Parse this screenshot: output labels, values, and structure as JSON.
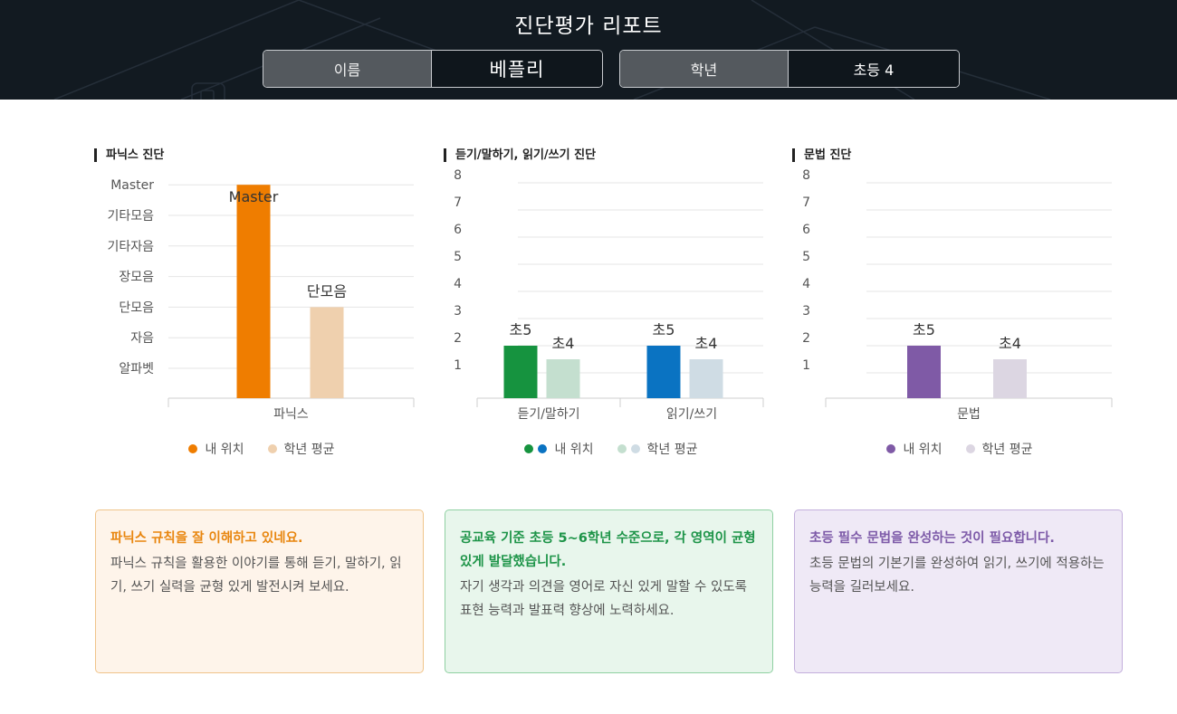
{
  "header": {
    "title": "진단평가 리포트",
    "name_label": "이름",
    "name_value": "베플리",
    "grade_label": "학년",
    "grade_value": "초등 4"
  },
  "panels": [
    {
      "title": "파닉스 진단",
      "legend": [
        "내 위치",
        "학년 평균"
      ]
    },
    {
      "title": "듣기/말하기, 읽기/쓰기 진단",
      "legend": [
        "내 위치",
        "학년 평균"
      ]
    },
    {
      "title": "문법 진단",
      "legend": [
        "내 위치",
        "학년 평균"
      ]
    }
  ],
  "chart_data": [
    {
      "type": "bar",
      "title": "파닉스 진단",
      "categories": [
        "파닉스"
      ],
      "y_ticks": [
        "알파벳",
        "자음",
        "단모음",
        "장모음",
        "기타자음",
        "기타모음",
        "Master"
      ],
      "series": [
        {
          "name": "내 위치",
          "values": [
            "Master"
          ],
          "labels": [
            "Master"
          ],
          "color": "#ef7d00"
        },
        {
          "name": "학년 평균",
          "values": [
            "단모음"
          ],
          "labels": [
            "단모음"
          ],
          "color": "#efd0ae"
        }
      ],
      "grid": true,
      "legend": "bottom"
    },
    {
      "type": "bar",
      "title": "듣기/말하기, 읽기/쓰기 진단",
      "categories": [
        "듣기/말하기",
        "읽기/쓰기"
      ],
      "ylim": [
        0,
        8
      ],
      "y_ticks": [
        1,
        2,
        3,
        4,
        5,
        6,
        7,
        8
      ],
      "series": [
        {
          "name": "내 위치",
          "values": [
            2,
            2
          ],
          "labels": [
            "초5",
            "초5"
          ],
          "colors": [
            "#16933f",
            "#0a73c2"
          ]
        },
        {
          "name": "학년 평균",
          "values": [
            1.5,
            1.5
          ],
          "labels": [
            "초4",
            "초4"
          ],
          "colors": [
            "#c4dfcf",
            "#cfdce4"
          ]
        }
      ],
      "grid": true,
      "legend": "bottom"
    },
    {
      "type": "bar",
      "title": "문법 진단",
      "categories": [
        "문법"
      ],
      "ylim": [
        0,
        8
      ],
      "y_ticks": [
        1,
        2,
        3,
        4,
        5,
        6,
        7,
        8
      ],
      "series": [
        {
          "name": "내 위치",
          "values": [
            2
          ],
          "labels": [
            "초5"
          ],
          "color": "#7f5aa6"
        },
        {
          "name": "학년 평균",
          "values": [
            1.5
          ],
          "labels": [
            "초4"
          ],
          "color": "#dcd6e2"
        }
      ],
      "grid": true,
      "legend": "bottom"
    }
  ],
  "messages": [
    {
      "title": "파닉스 규칙을 잘 이해하고 있네요.",
      "body": "파닉스 규칙을 활용한 이야기를 통해 듣기, 말하기, 읽기, 쓰기 실력을 균형 있게 발전시켜 보세요.",
      "title_color": "#e8860f",
      "bg": "#fef4ea",
      "border": "#f0c48a"
    },
    {
      "title": "공교육 기준 초등 5~6학년 수준으로, 각 영역이 균형 있게 발달했습니다.",
      "body": "자기 생각과 의견을 영어로 자신 있게 말할 수 있도록 표현 능력과 발표력 향상에 노력하세요.",
      "title_color": "#1d9448",
      "bg": "#e8f6ec",
      "border": "#8fd0a2"
    },
    {
      "title": "초등 필수 문법을 완성하는 것이 필요합니다.",
      "body": "초등 문법의 기본기를 완성하여 읽기, 쓰기에 적용하는 능력을 길러보세요.",
      "title_color": "#7d5aa8",
      "bg": "#efe9f6",
      "border": "#c3afdc"
    }
  ]
}
